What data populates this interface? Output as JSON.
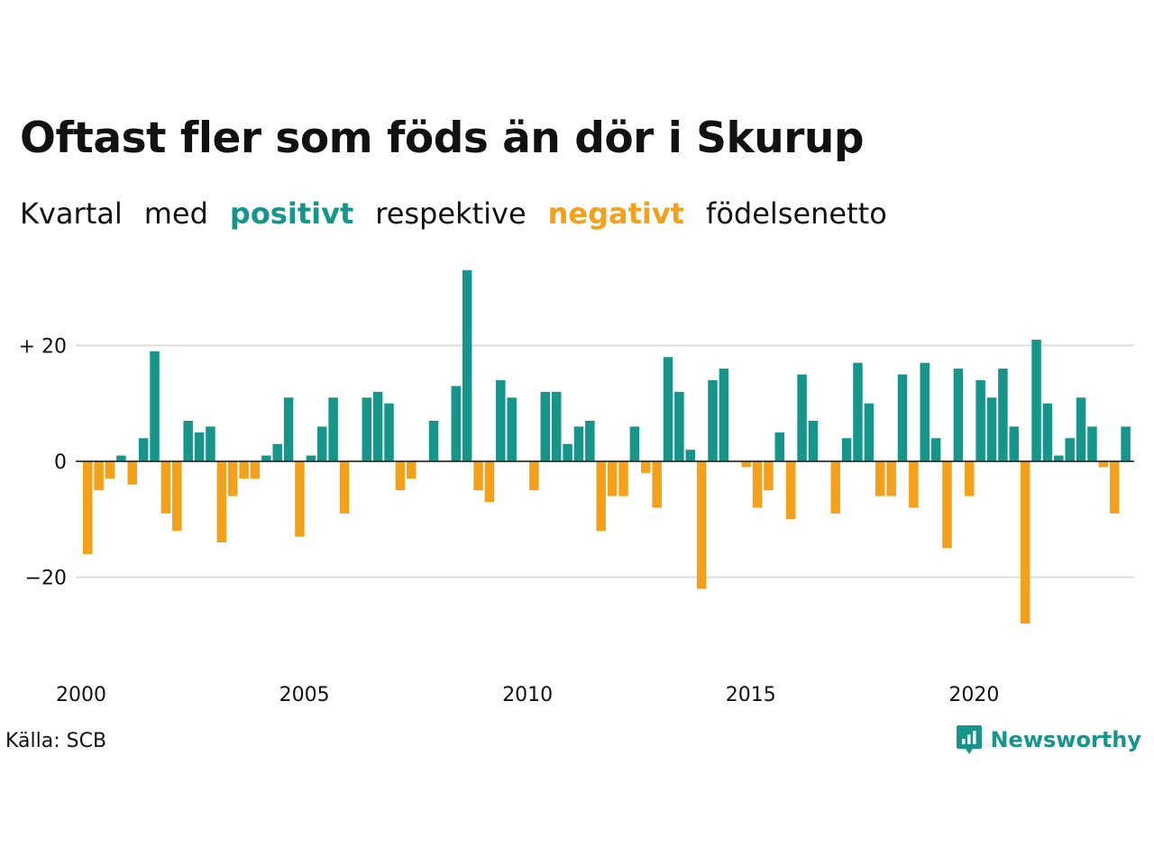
{
  "title": "Oftast fler som föds än dör i Skurup",
  "subtitle": {
    "part1": "Kvartal",
    "part2": "med",
    "positive": "positivt",
    "part3": "respektive",
    "negative": "negativt",
    "part4": "födelsenetto"
  },
  "source": "Källa: SCB",
  "brand": "Newsworthy",
  "colors": {
    "positive": "#16968a",
    "negative": "#f5a019",
    "grid": "#dddddd",
    "zero": "#111111"
  },
  "chart_data": {
    "type": "bar",
    "x_start": "2000-Q1",
    "x_tick_labels": [
      "2000",
      "2005",
      "2010",
      "2015",
      "2020"
    ],
    "y_tick_labels": [
      "+ 20",
      "0",
      "−20"
    ],
    "y_ticks": [
      20,
      0,
      -20
    ],
    "ylim": [
      -30,
      33
    ],
    "grid": true,
    "values": [
      -16,
      -5,
      -3,
      1,
      -4,
      4,
      19,
      -9,
      -12,
      7,
      5,
      6,
      -14,
      -6,
      -3,
      -3,
      1,
      3,
      11,
      -13,
      1,
      6,
      11,
      -9,
      0,
      11,
      12,
      10,
      -5,
      -3,
      0,
      7,
      0,
      13,
      33,
      -5,
      -7,
      14,
      11,
      0,
      -5,
      12,
      12,
      3,
      6,
      7,
      -12,
      -6,
      -6,
      6,
      -2,
      -8,
      18,
      12,
      2,
      -22,
      14,
      16,
      0,
      -1,
      -8,
      -5,
      5,
      -10,
      15,
      7,
      0,
      -9,
      4,
      17,
      10,
      -6,
      -6,
      15,
      -8,
      17,
      4,
      -15,
      16,
      -6,
      14,
      11,
      16,
      6,
      -28,
      21,
      10,
      1,
      4,
      11,
      6,
      -1,
      -9,
      6
    ]
  }
}
